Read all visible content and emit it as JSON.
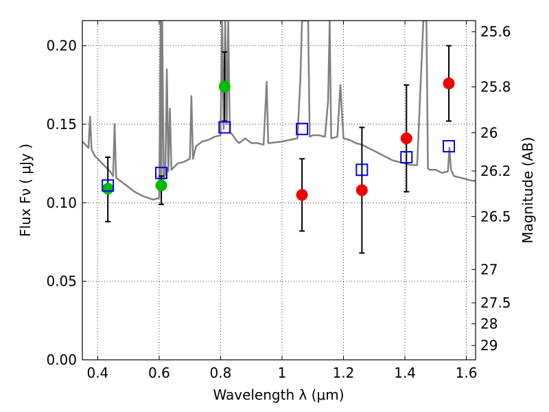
{
  "chart_data": {
    "type": "scatter",
    "xlabel": "Wavelength  λ (μm)",
    "ylabel": "Flux  Fν  ( μJy )",
    "y2label": "Magnitude (AB)",
    "xlim": [
      0.35,
      1.63
    ],
    "ylim": [
      0.0,
      0.216
    ],
    "grid": true,
    "x_ticks": [
      0.4,
      0.6,
      0.8,
      1.0,
      1.2,
      1.4,
      1.6
    ],
    "x_tick_labels": [
      "0.4",
      "0.6",
      "0.8",
      "1",
      "1.2",
      "1.4",
      "1.6"
    ],
    "y_ticks": [
      0.0,
      0.05,
      0.1,
      0.15,
      0.2
    ],
    "y_tick_labels": [
      "0.00",
      "0.05",
      "0.10",
      "0.15",
      "0.20"
    ],
    "y2_tick_labels": [
      "25.6",
      "25.8",
      "26",
      "26.2",
      "26.5",
      "27",
      "27.5",
      "28",
      "29"
    ],
    "colors": {
      "model": "#808080",
      "green": "#00bb00",
      "red": "#ee0000",
      "square": "#0000ee",
      "errorbar": "#000000"
    },
    "series": [
      {
        "kind": "model-spectrum",
        "x": [
          0.35,
          0.37,
          0.375,
          0.38,
          0.385,
          0.39,
          0.4,
          0.42,
          0.44,
          0.45,
          0.455,
          0.46,
          0.48,
          0.5,
          0.52,
          0.55,
          0.58,
          0.6,
          0.605,
          0.607,
          0.61,
          0.615,
          0.62,
          0.625,
          0.63,
          0.635,
          0.64,
          0.66,
          0.68,
          0.7,
          0.705,
          0.71,
          0.72,
          0.74,
          0.76,
          0.78,
          0.8,
          0.805,
          0.81,
          0.815,
          0.82,
          0.825,
          0.83,
          0.84,
          0.85,
          0.86,
          0.88,
          0.9,
          0.92,
          0.94,
          0.95,
          0.955,
          0.96,
          1.0,
          1.05,
          1.06,
          1.065,
          1.07,
          1.075,
          1.08,
          1.085,
          1.09,
          1.1,
          1.12,
          1.14,
          1.15,
          1.155,
          1.16,
          1.18,
          1.19,
          1.2,
          1.22,
          1.24,
          1.26,
          1.28,
          1.3,
          1.32,
          1.34,
          1.36,
          1.38,
          1.4,
          1.42,
          1.44,
          1.46,
          1.465,
          1.47,
          1.475,
          1.48,
          1.5,
          1.52,
          1.54,
          1.545,
          1.55,
          1.56,
          1.58,
          1.6,
          1.62,
          1.63
        ],
        "values": [
          0.139,
          0.135,
          0.155,
          0.134,
          0.132,
          0.13,
          0.128,
          0.124,
          0.12,
          0.117,
          0.15,
          0.116,
          0.113,
          0.11,
          0.107,
          0.104,
          0.102,
          0.103,
          0.216,
          0.106,
          0.216,
          0.115,
          0.118,
          0.185,
          0.12,
          0.16,
          0.121,
          0.125,
          0.126,
          0.128,
          0.168,
          0.128,
          0.136,
          0.139,
          0.14,
          0.142,
          0.143,
          0.216,
          0.147,
          0.216,
          0.15,
          0.216,
          0.145,
          0.143,
          0.14,
          0.138,
          0.141,
          0.138,
          0.138,
          0.137,
          0.177,
          0.138,
          0.138,
          0.139,
          0.141,
          0.18,
          0.216,
          0.216,
          0.216,
          0.216,
          0.216,
          0.142,
          0.143,
          0.143,
          0.142,
          0.165,
          0.216,
          0.141,
          0.142,
          0.175,
          0.141,
          0.14,
          0.138,
          0.137,
          0.135,
          0.133,
          0.131,
          0.129,
          0.127,
          0.126,
          0.125,
          0.124,
          0.124,
          0.216,
          0.216,
          0.216,
          0.122,
          0.121,
          0.121,
          0.119,
          0.12,
          0.135,
          0.121,
          0.117,
          0.116,
          0.115,
          0.114,
          0.114
        ]
      },
      {
        "kind": "green-points",
        "x": [
          0.433,
          0.607,
          0.813
        ],
        "values": [
          0.109,
          0.111,
          0.174
        ]
      },
      {
        "kind": "red-points",
        "x": [
          1.065,
          1.26,
          1.405,
          1.543
        ],
        "values": [
          0.105,
          0.108,
          0.141,
          0.176
        ]
      },
      {
        "kind": "blue-squares",
        "x": [
          0.433,
          0.607,
          0.813,
          1.065,
          1.26,
          1.405,
          1.543
        ],
        "values": [
          0.111,
          0.119,
          0.148,
          0.147,
          0.121,
          0.129,
          0.136
        ]
      },
      {
        "kind": "error-bars",
        "x": [
          0.433,
          0.607,
          0.813,
          1.065,
          1.26,
          1.405,
          1.543
        ],
        "lo": [
          0.088,
          0.099,
          0.152,
          0.082,
          0.068,
          0.107,
          0.152
        ],
        "hi": [
          0.129,
          0.117,
          0.196,
          0.128,
          0.148,
          0.175,
          0.2
        ]
      }
    ]
  }
}
